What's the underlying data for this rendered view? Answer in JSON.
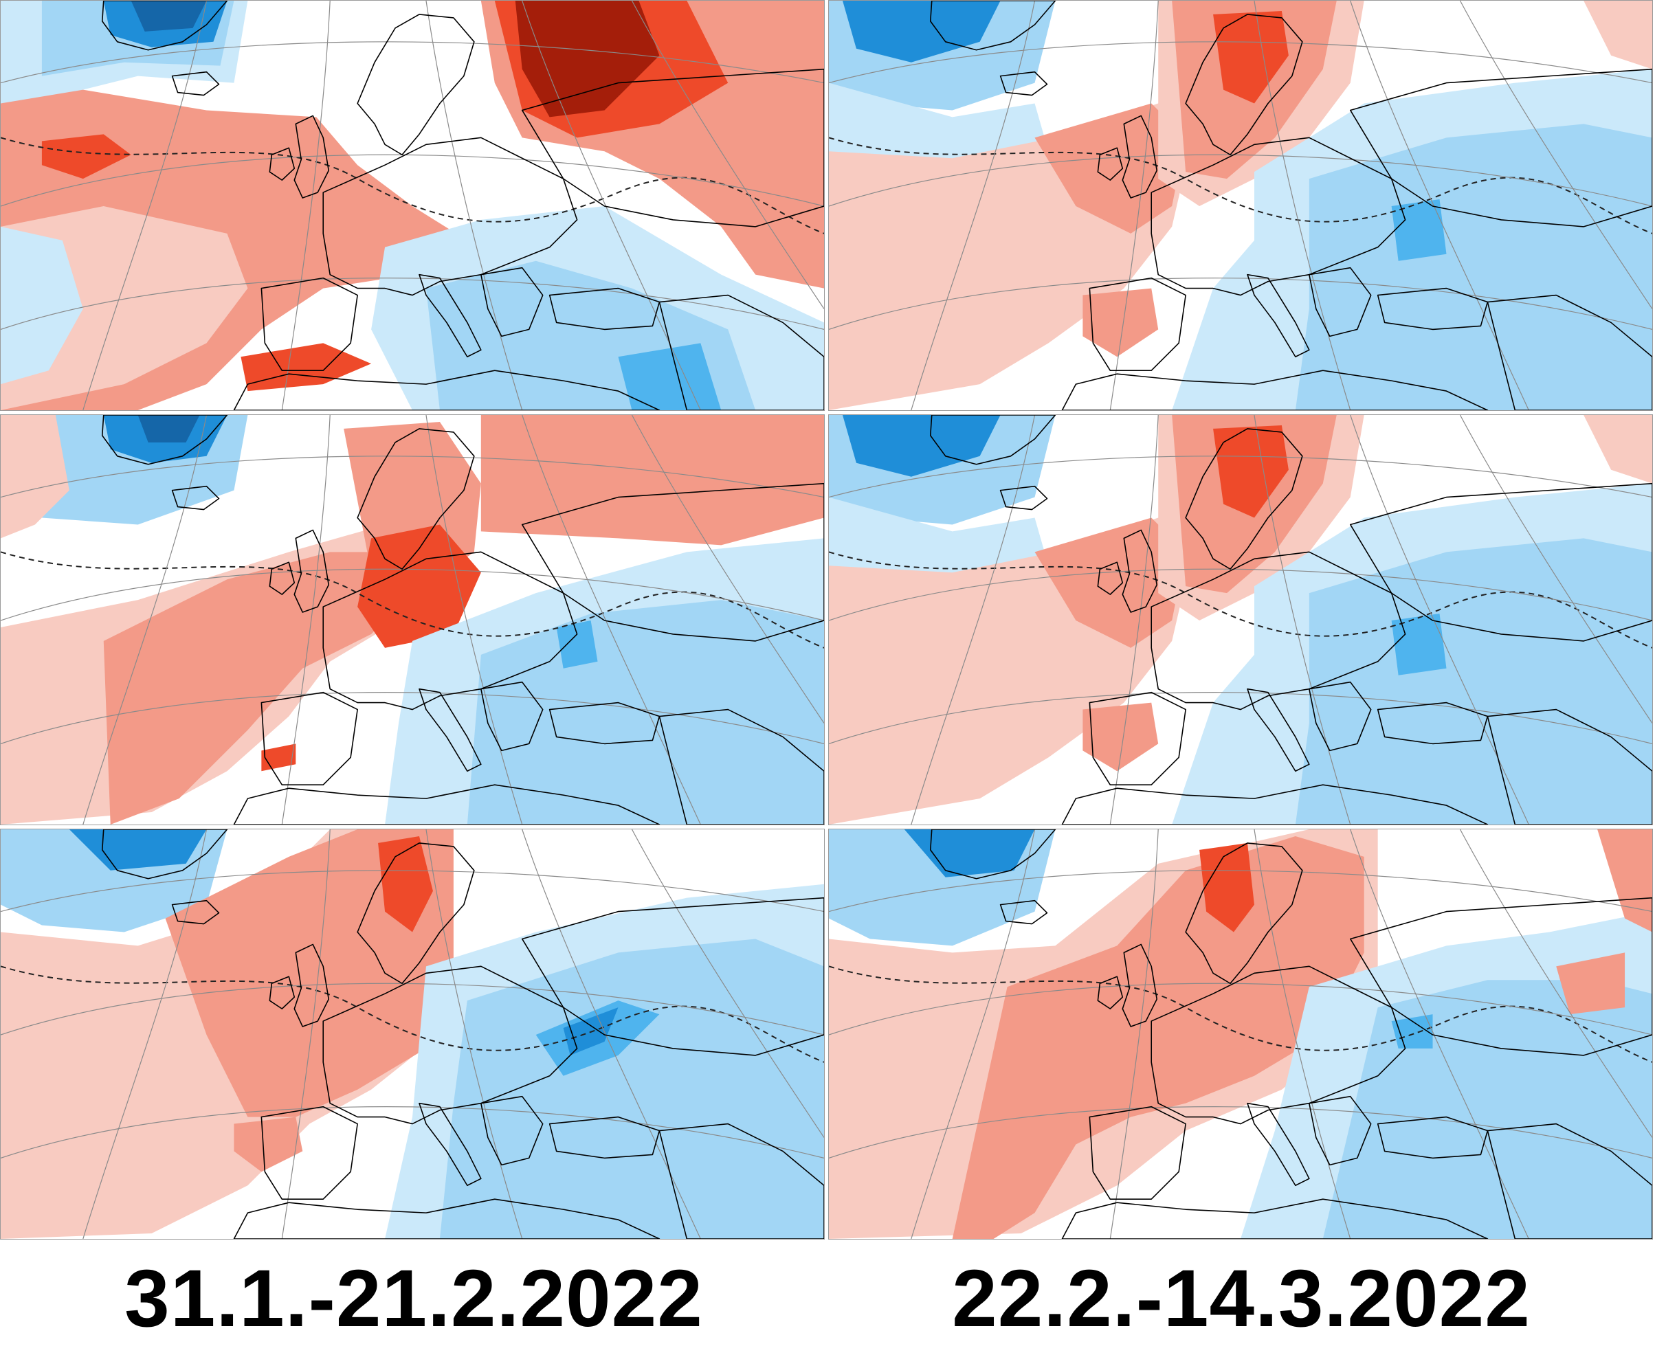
{
  "palette": {
    "warm_strong": "#a41e0a",
    "warm_high": "#ee4a2a",
    "warm_mid": "#f39a88",
    "warm_low": "#f8cbc1",
    "cool_low": "#cbe9fa",
    "cool_mid": "#a2d6f5",
    "cool_high": "#4fb4ee",
    "cool_strong": "#1f8ed8",
    "cool_deep": "#1566a8",
    "land_outline": "#000000",
    "graticule": "#8a8a8a"
  },
  "panels": [
    {
      "period": "31.1.-21.2.2022",
      "row": 1,
      "pattern": "a"
    },
    {
      "period": "22.2.-14.3.2022",
      "row": 1,
      "pattern": "b"
    },
    {
      "period": "31.1.-21.2.2022",
      "row": 2,
      "pattern": "c"
    },
    {
      "period": "22.2.-14.3.2022",
      "row": 2,
      "pattern": "b"
    },
    {
      "period": "31.1.-21.2.2022",
      "row": 3,
      "pattern": "d"
    },
    {
      "period": "22.2.-14.3.2022",
      "row": 3,
      "pattern": "e"
    }
  ],
  "captions": {
    "left": "31.1.-21.2.2022",
    "right": "22.2.-14.3.2022"
  }
}
